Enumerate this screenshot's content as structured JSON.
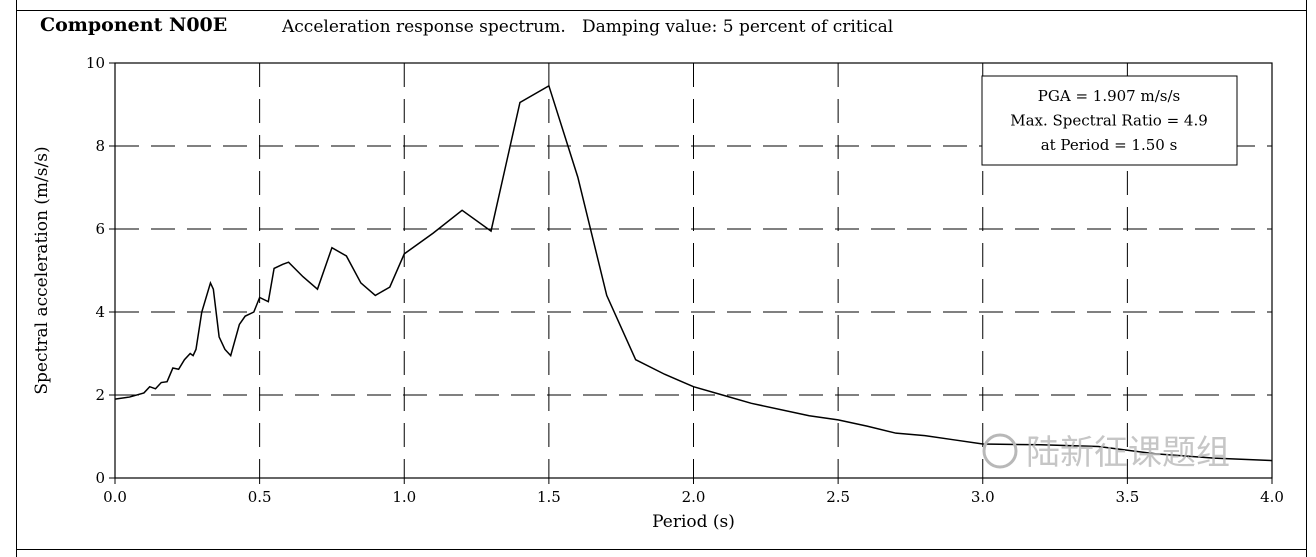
{
  "header": {
    "component": "Component N00E",
    "description": "Acceleration response spectrum.   Damping value: 5 percent of critical"
  },
  "watermark": "陆新征课题组",
  "chart_data": {
    "type": "line",
    "title": "Acceleration response spectrum",
    "xlabel": "Period (s)",
    "ylabel": "Spectral acceleration (m/s/s)",
    "xlim": [
      0,
      4
    ],
    "ylim": [
      0,
      10
    ],
    "xticks": [
      "0.0",
      "0.5",
      "1.0",
      "1.5",
      "2.0",
      "2.5",
      "3.0",
      "3.5",
      "4.0"
    ],
    "yticks": [
      "0",
      "2",
      "4",
      "6",
      "8",
      "10"
    ],
    "grid": true,
    "annotation": [
      "PGA = 1.907 m/s/s",
      "Max. Spectral Ratio = 4.9",
      "at Period = 1.50 s"
    ],
    "annotation_position": "top-right",
    "series": [
      {
        "name": "N00E",
        "x": [
          0,
          0.05,
          0.1,
          0.12,
          0.14,
          0.16,
          0.18,
          0.2,
          0.22,
          0.24,
          0.26,
          0.27,
          0.28,
          0.3,
          0.33,
          0.34,
          0.36,
          0.38,
          0.4,
          0.43,
          0.45,
          0.48,
          0.5,
          0.53,
          0.55,
          0.58,
          0.6,
          0.65,
          0.7,
          0.75,
          0.8,
          0.85,
          0.9,
          0.95,
          1.0,
          1.1,
          1.2,
          1.3,
          1.4,
          1.5,
          1.6,
          1.7,
          1.8,
          1.9,
          2.0,
          2.1,
          2.2,
          2.4,
          2.5,
          2.6,
          2.7,
          2.8,
          2.9,
          3.0,
          3.2,
          3.4,
          3.6,
          3.8,
          4.0
        ],
        "y": [
          1.9,
          1.95,
          2.05,
          2.2,
          2.15,
          2.3,
          2.32,
          2.65,
          2.62,
          2.85,
          3.0,
          2.95,
          3.1,
          4.0,
          4.7,
          4.55,
          3.4,
          3.1,
          2.95,
          3.7,
          3.9,
          4.0,
          4.35,
          4.25,
          5.05,
          5.15,
          5.2,
          4.85,
          4.55,
          5.55,
          5.35,
          4.7,
          4.4,
          4.6,
          5.4,
          5.9,
          6.45,
          5.95,
          9.05,
          9.45,
          7.25,
          4.4,
          2.85,
          2.5,
          2.2,
          2.0,
          1.8,
          1.5,
          1.4,
          1.25,
          1.08,
          1.02,
          0.92,
          0.82,
          0.8,
          0.76,
          0.58,
          0.48,
          0.42
        ]
      }
    ]
  }
}
